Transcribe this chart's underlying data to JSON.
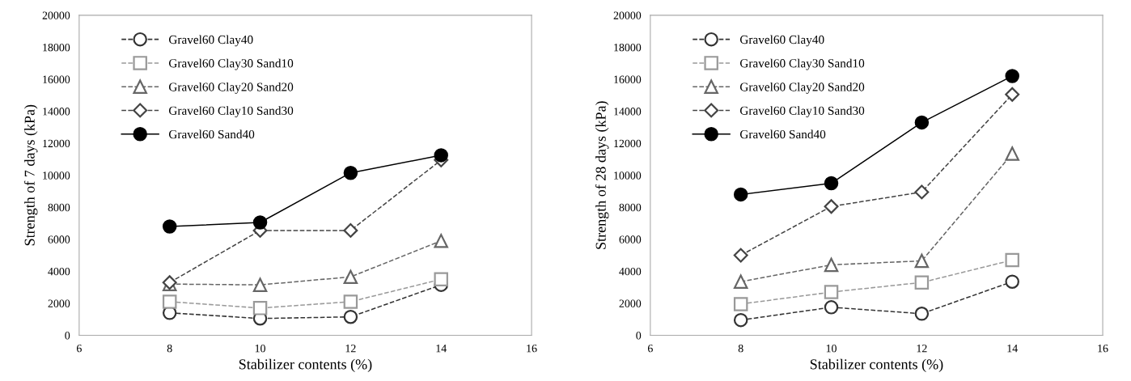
{
  "chart_data": [
    {
      "type": "line",
      "xlabel": "Stabilizer contents (%)",
      "ylabel": "Strength of 7 days (kPa)",
      "x": [
        8,
        10,
        12,
        14
      ],
      "xlim": [
        6,
        16
      ],
      "xticks": [
        6,
        8,
        10,
        12,
        14,
        16
      ],
      "ylim": [
        0,
        20000
      ],
      "yticks": [
        0,
        2000,
        4000,
        6000,
        8000,
        10000,
        12000,
        14000,
        16000,
        18000,
        20000
      ],
      "grid": false,
      "legend": "top left",
      "series": [
        {
          "name": "Gravel60 Clay40",
          "color": "#333333",
          "marker": "circle",
          "line_style": "dashed",
          "values": [
            1400,
            1050,
            1150,
            3150
          ]
        },
        {
          "name": "Gravel60 Clay30 Sand10",
          "color": "#999999",
          "marker": "square",
          "line_style": "dashed",
          "values": [
            2100,
            1700,
            2100,
            3500
          ]
        },
        {
          "name": "Gravel60 Clay20 Sand20",
          "color": "#666666",
          "marker": "triangle",
          "line_style": "dashed",
          "values": [
            3200,
            3150,
            3650,
            5900
          ]
        },
        {
          "name": "Gravel60 Clay10 Sand30",
          "color": "#444444",
          "marker": "diamond",
          "line_style": "dashed",
          "values": [
            3300,
            6550,
            6550,
            10950
          ]
        },
        {
          "name": "Gravel60 Sand40",
          "color": "#000000",
          "marker": "circle",
          "line_style": "solid",
          "values": [
            6800,
            7050,
            10150,
            11250
          ]
        }
      ]
    },
    {
      "type": "line",
      "xlabel": "Stabilizer contents (%)",
      "ylabel": "Strength of 28 days (kPa)",
      "x": [
        8,
        10,
        12,
        14
      ],
      "xlim": [
        6,
        16
      ],
      "xticks": [
        6,
        8,
        10,
        12,
        14,
        16
      ],
      "ylim": [
        0,
        20000
      ],
      "yticks": [
        0,
        2000,
        4000,
        6000,
        8000,
        10000,
        12000,
        14000,
        16000,
        18000,
        20000
      ],
      "grid": false,
      "legend": "top left",
      "series": [
        {
          "name": "Gravel60 Clay40",
          "color": "#333333",
          "marker": "circle",
          "line_style": "dashed",
          "values": [
            950,
            1750,
            1350,
            3350
          ]
        },
        {
          "name": "Gravel60 Clay30 Sand10",
          "color": "#999999",
          "marker": "square",
          "line_style": "dashed",
          "values": [
            1950,
            2700,
            3300,
            4700
          ]
        },
        {
          "name": "Gravel60 Clay20 Sand20",
          "color": "#666666",
          "marker": "triangle",
          "line_style": "dashed",
          "values": [
            3350,
            4400,
            4650,
            11350
          ]
        },
        {
          "name": "Gravel60 Clay10 Sand30",
          "color": "#444444",
          "marker": "diamond",
          "line_style": "dashed",
          "values": [
            5000,
            8050,
            8950,
            15050
          ]
        },
        {
          "name": "Gravel60 Sand40",
          "color": "#000000",
          "marker": "circle",
          "line_style": "solid",
          "values": [
            8800,
            9500,
            13300,
            16200
          ]
        }
      ]
    }
  ]
}
